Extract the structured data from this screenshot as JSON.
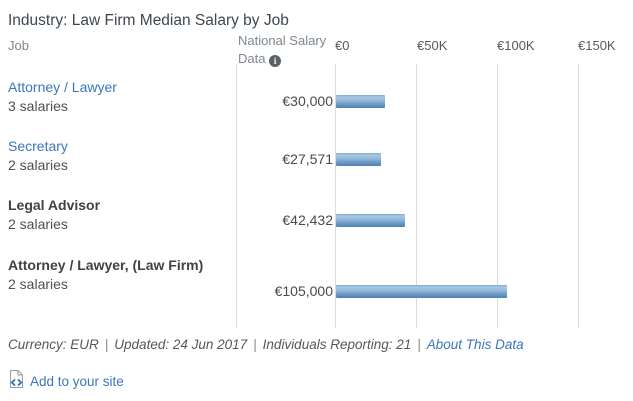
{
  "title": "Industry: Law Firm Median Salary by Job",
  "columns": {
    "job": "Job",
    "salary": "National Salary Data",
    "info_icon_glyph": "i"
  },
  "axis_ticks": [
    "€0",
    "€50K",
    "€100K",
    "€150K"
  ],
  "rows": [
    {
      "job": "Attorney / Lawyer",
      "count": "3 salaries",
      "value_label": "€30,000"
    },
    {
      "job": "Secretary",
      "count": "2 salaries",
      "value_label": "€27,571"
    },
    {
      "job": "Legal Advisor",
      "count": "2 salaries",
      "value_label": "€42,432"
    },
    {
      "job": "Attorney / Lawyer, (Law Firm)",
      "count": "2 salaries",
      "value_label": "€105,000"
    }
  ],
  "chart_data": {
    "type": "bar",
    "orientation": "horizontal",
    "title": "Industry: Law Firm Median Salary by Job",
    "categories": [
      "Attorney / Lawyer",
      "Secretary",
      "Legal Advisor",
      "Attorney / Lawyer, (Law Firm)"
    ],
    "values": [
      30000,
      27571,
      42432,
      105000
    ],
    "value_labels": [
      "€30,000",
      "€27,571",
      "€42,432",
      "€105,000"
    ],
    "sample_counts": [
      3,
      2,
      2,
      2
    ],
    "x_ticks": [
      "€0",
      "€50K",
      "€100K",
      "€150K"
    ],
    "xlim": [
      0,
      150000
    ],
    "currency": "EUR",
    "grid": true,
    "legend": false,
    "bar_gradient": [
      "#a9c9e4",
      "#4d80b3"
    ],
    "gridline_color": "#dcdcdc"
  },
  "footer": {
    "currency": "Currency: EUR",
    "separator": "|",
    "updated": "Updated: 24 Jun 2017",
    "reporting": "Individuals Reporting: 21",
    "about_link": "About This Data"
  },
  "embed": {
    "label": "Add to your site"
  },
  "colors": {
    "link": "#3a76bd",
    "title_text": "#3e474f",
    "header_text": "#7e878f"
  }
}
